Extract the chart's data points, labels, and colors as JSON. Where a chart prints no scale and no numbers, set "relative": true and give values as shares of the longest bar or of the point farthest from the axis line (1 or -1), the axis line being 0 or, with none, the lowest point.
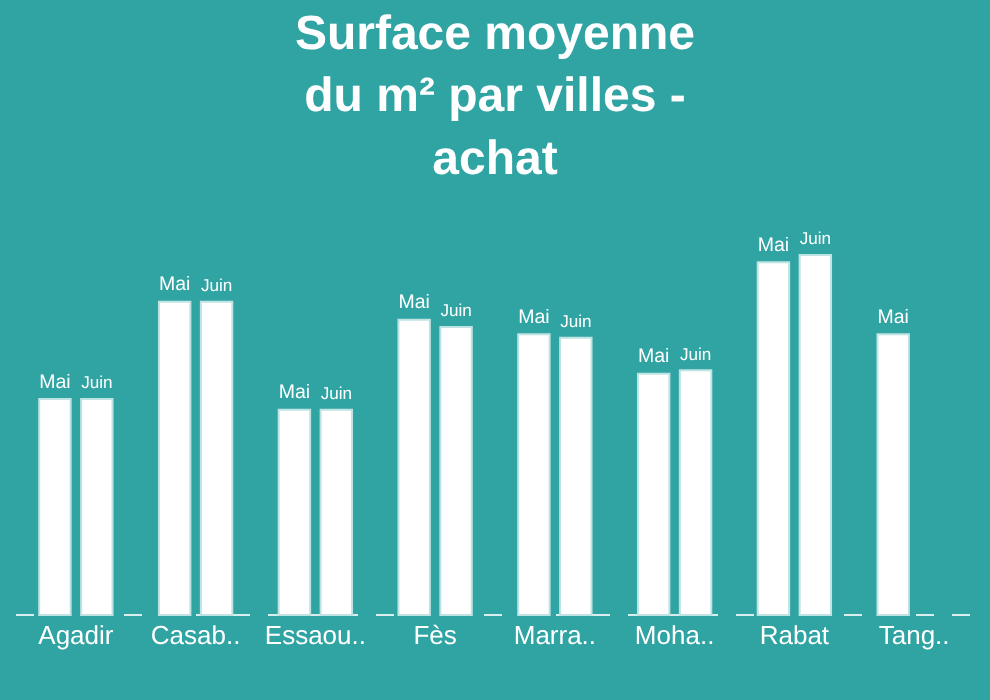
{
  "chart_data": {
    "type": "bar",
    "title": "Surface moyenne\ndu m² par villes -\nachat",
    "relative": true,
    "legend": false,
    "grid": false,
    "categories": [
      "Agadir",
      "Casab..",
      "Essaou..",
      "Fès",
      "Marra..",
      "Moha..",
      "Rabat",
      "Tang.."
    ],
    "series": [
      {
        "name": "Mai",
        "color": "#ffffff",
        "values": [
          0.6,
          0.87,
          0.57,
          0.82,
          0.78,
          0.67,
          0.98,
          0.78
        ]
      },
      {
        "name": "Juin",
        "color": "#ffffff",
        "values": [
          0.6,
          0.87,
          0.57,
          0.8,
          0.77,
          0.68,
          1,
          null
        ]
      }
    ]
  }
}
